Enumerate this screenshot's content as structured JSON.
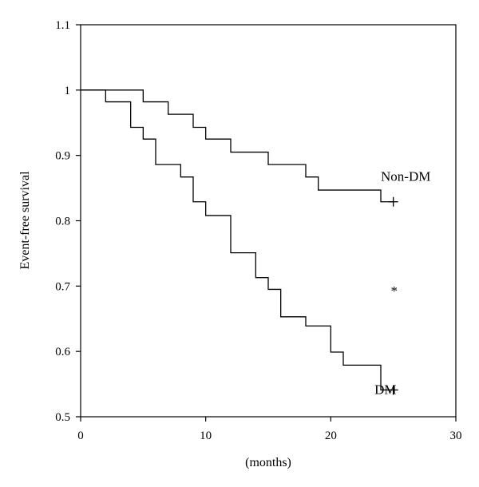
{
  "chart_data": {
    "type": "line",
    "step": true,
    "xlabel": "(months)",
    "ylabel": "Event-free survival",
    "xlim": [
      0,
      30
    ],
    "ylim": [
      0.5,
      1.1
    ],
    "xticks": [
      0,
      10,
      20,
      30
    ],
    "yticks": [
      0.5,
      0.6,
      0.7,
      0.8,
      0.9,
      1,
      1.1
    ],
    "grid": false,
    "series": [
      {
        "name": "Non-DM",
        "x": [
          0,
          5,
          7,
          9,
          10,
          12,
          15,
          18,
          19,
          24,
          25
        ],
        "y": [
          1.0,
          0.982,
          0.963,
          0.943,
          0.925,
          0.905,
          0.886,
          0.867,
          0.847,
          0.829,
          0.829
        ],
        "censor": [
          25,
          0.829
        ]
      },
      {
        "name": "DM",
        "x": [
          0,
          2,
          4,
          5,
          6,
          8,
          9,
          10,
          12,
          14,
          15,
          16,
          18,
          20,
          21,
          24,
          25
        ],
        "y": [
          1.0,
          0.982,
          0.943,
          0.925,
          0.886,
          0.867,
          0.829,
          0.808,
          0.751,
          0.713,
          0.695,
          0.653,
          0.639,
          0.599,
          0.579,
          0.541,
          0.541
        ],
        "censor": [
          25,
          0.541
        ]
      }
    ],
    "annotations": [
      {
        "text": "Non-DM",
        "x": 24,
        "y": 0.867
      },
      {
        "text": "*",
        "x": 24.8,
        "y": 0.692
      },
      {
        "text": "DM",
        "x": 23.5,
        "y": 0.541
      }
    ]
  }
}
